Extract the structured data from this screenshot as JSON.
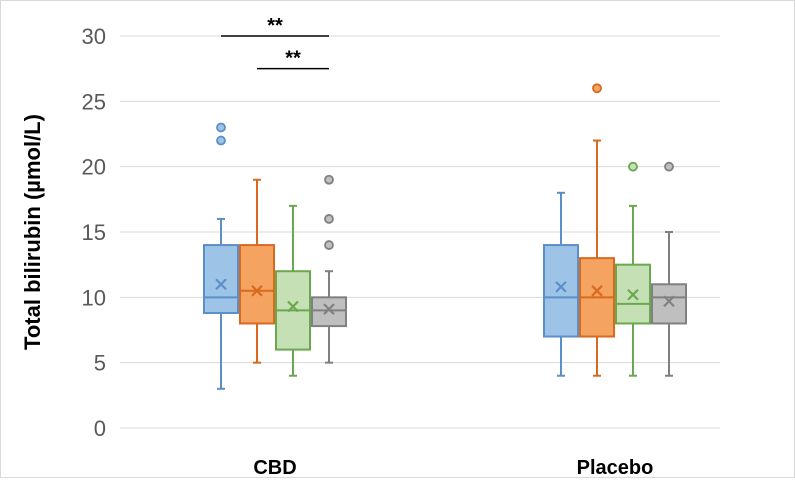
{
  "chart_data": {
    "type": "box",
    "ylabel": "Total bilirubin (µmol/L)",
    "xlabel": "",
    "ylim": [
      0,
      30
    ],
    "yticks": [
      0,
      5,
      10,
      15,
      20,
      25,
      30
    ],
    "grid": true,
    "legend": "none",
    "categories": [
      "CBD",
      "Placebo"
    ],
    "box_colors": {
      "fill": [
        "#9dc3e6",
        "#f4a460",
        "#c5e0b4",
        "#bfbfbf"
      ],
      "stroke": [
        "#5b8fc9",
        "#d86a1f",
        "#6aa84f",
        "#808080"
      ]
    },
    "groups": [
      {
        "category": "CBD",
        "boxes": [
          {
            "min": 3,
            "q1": 8.8,
            "median": 10,
            "q3": 14,
            "max": 16,
            "mean": 11,
            "outliers": [
              22,
              23
            ]
          },
          {
            "min": 5,
            "q1": 8,
            "median": 10.5,
            "q3": 14,
            "max": 19,
            "mean": 10.5,
            "outliers": []
          },
          {
            "min": 4,
            "q1": 6,
            "median": 9,
            "q3": 12,
            "max": 17,
            "mean": 9.3,
            "outliers": []
          },
          {
            "min": 5,
            "q1": 7.8,
            "median": 9,
            "q3": 10,
            "max": 12,
            "mean": 9.1,
            "outliers": [
              14,
              16,
              19
            ]
          }
        ]
      },
      {
        "category": "Placebo",
        "boxes": [
          {
            "min": 4,
            "q1": 7,
            "median": 10,
            "q3": 14,
            "max": 18,
            "mean": 10.8,
            "outliers": []
          },
          {
            "min": 4,
            "q1": 7,
            "median": 10,
            "q3": 13,
            "max": 22,
            "mean": 10.5,
            "outliers": [
              26
            ]
          },
          {
            "min": 4,
            "q1": 8,
            "median": 9.5,
            "q3": 12.5,
            "max": 17,
            "mean": 10.2,
            "outliers": [
              20
            ]
          },
          {
            "min": 4,
            "q1": 8,
            "median": 10,
            "q3": 11,
            "max": 15,
            "mean": 9.7,
            "outliers": [
              20
            ]
          }
        ]
      }
    ],
    "significance": [
      {
        "group": "CBD",
        "from_box": 0,
        "to_box": 3,
        "label": "**",
        "level": 30
      },
      {
        "group": "CBD",
        "from_box": 1,
        "to_box": 3,
        "label": "**",
        "level": 27.5
      }
    ]
  }
}
